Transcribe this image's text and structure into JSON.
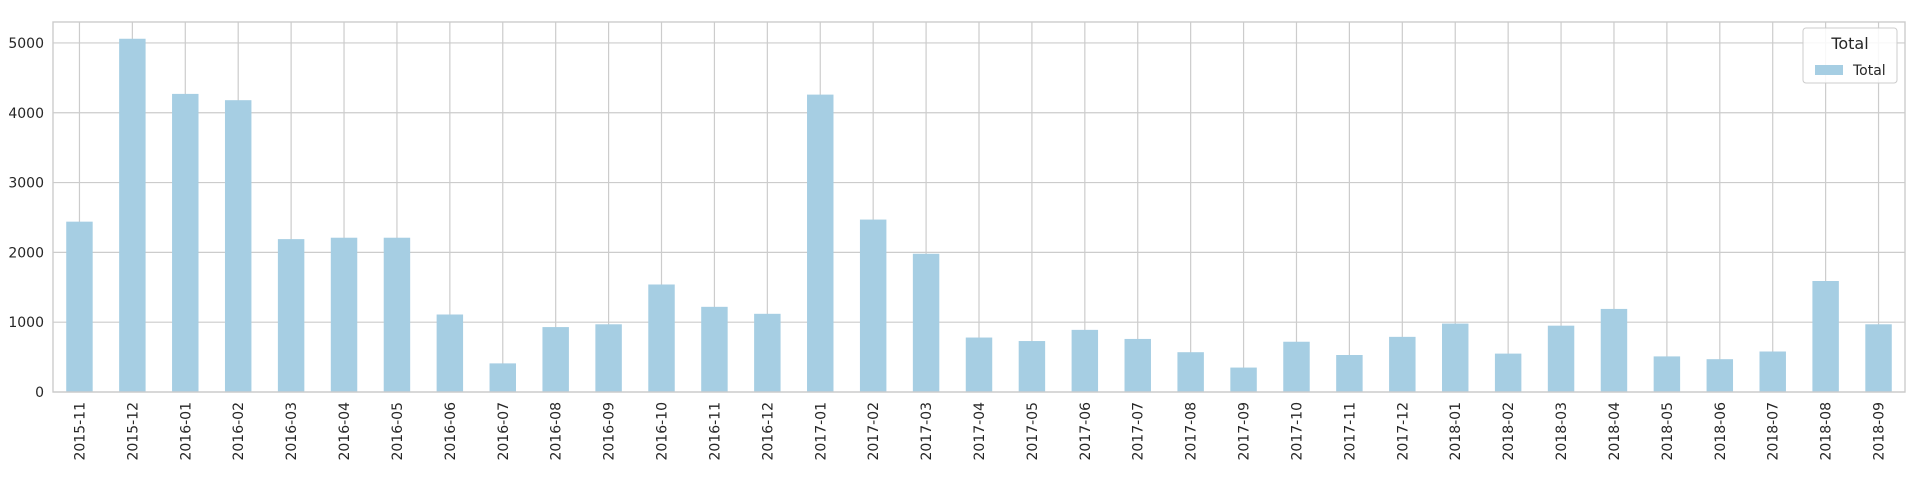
{
  "chart_data": {
    "type": "bar",
    "title": "",
    "xlabel": "",
    "ylabel": "",
    "categories": [
      "2015-11",
      "2015-12",
      "2016-01",
      "2016-02",
      "2016-03",
      "2016-04",
      "2016-05",
      "2016-06",
      "2016-07",
      "2016-08",
      "2016-09",
      "2016-10",
      "2016-11",
      "2016-12",
      "2017-01",
      "2017-02",
      "2017-03",
      "2017-04",
      "2017-05",
      "2017-06",
      "2017-07",
      "2017-08",
      "2017-09",
      "2017-10",
      "2017-11",
      "2017-12",
      "2018-01",
      "2018-02",
      "2018-03",
      "2018-04",
      "2018-05",
      "2018-06",
      "2018-07",
      "2018-08",
      "2018-09"
    ],
    "series": [
      {
        "name": "Total",
        "values": [
          2440,
          5060,
          4270,
          4180,
          2190,
          2210,
          2210,
          1110,
          410,
          930,
          970,
          1540,
          1220,
          1120,
          4260,
          2470,
          1980,
          780,
          730,
          890,
          760,
          570,
          350,
          720,
          530,
          790,
          980,
          550,
          950,
          1190,
          510,
          470,
          580,
          1590,
          970
        ]
      }
    ],
    "ylim": [
      0,
      5300
    ],
    "yticks": [
      0,
      1000,
      2000,
      3000,
      4000,
      5000
    ],
    "grid": true,
    "legend": {
      "title": "Total",
      "placement": "top-right",
      "entries": [
        "Total"
      ]
    },
    "colors": {
      "bar": "#a6cee3",
      "grid": "#cccccc",
      "spine": "#cccccc",
      "background": "#ffffff"
    }
  }
}
